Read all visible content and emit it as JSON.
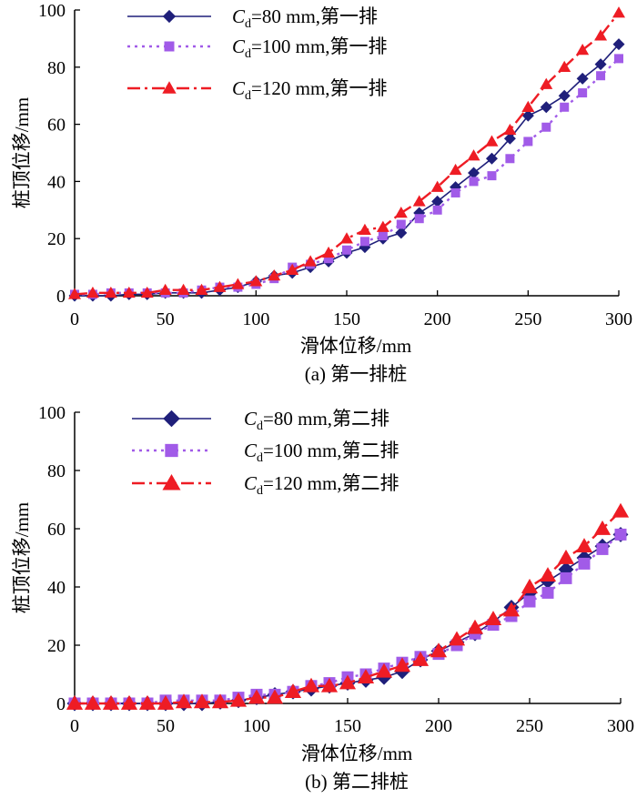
{
  "colors": {
    "c80": "#1f1f7a",
    "c100": "#a15be8",
    "c120": "#ee1c24",
    "axis": "#000000"
  },
  "chart_data": [
    {
      "type": "line",
      "caption": "(a) 第一排桩",
      "xlabel": "滑体位移/mm",
      "ylabel": "桩顶位移/mm",
      "xlim": [
        0,
        300
      ],
      "ylim": [
        0,
        100
      ],
      "xticks": [
        "0",
        "50",
        "100",
        "150",
        "200",
        "250",
        "300"
      ],
      "yticks": [
        "0",
        "20",
        "40",
        "60",
        "80",
        "100"
      ],
      "grid": false,
      "legend_position": "top-left",
      "x": [
        0,
        10,
        20,
        30,
        40,
        50,
        60,
        70,
        80,
        90,
        100,
        110,
        120,
        130,
        140,
        150,
        160,
        170,
        180,
        190,
        200,
        210,
        220,
        230,
        240,
        250,
        260,
        270,
        280,
        290,
        300
      ],
      "series": [
        {
          "legend_symbol": "C",
          "legend_subscript": "d",
          "legend_suffix": "=80 mm,第一排",
          "marker": "diamond",
          "line": "solid",
          "color": "#1f1f7a",
          "values": [
            0,
            0,
            0,
            0.5,
            0.5,
            1,
            1,
            1,
            2,
            3,
            5,
            7,
            8,
            10,
            12,
            15,
            17,
            20,
            22,
            29,
            33,
            38,
            43,
            48,
            55,
            63,
            66,
            70,
            76,
            81,
            88
          ]
        },
        {
          "legend_symbol": "C",
          "legend_subscript": "d",
          "legend_suffix": "=100 mm,第一排",
          "marker": "square",
          "line": "dotted",
          "color": "#a15be8",
          "values": [
            0.5,
            0.5,
            1,
            1,
            1,
            1,
            1,
            2,
            3,
            3,
            4,
            6,
            10,
            11,
            13,
            16,
            19,
            21,
            25,
            27,
            30,
            36,
            40,
            42,
            48,
            54,
            59,
            66,
            71,
            77,
            83
          ]
        },
        {
          "legend_symbol": "C",
          "legend_subscript": "d",
          "legend_suffix": "=120 mm,第一排",
          "marker": "triangle",
          "line": "dashdot",
          "color": "#ee1c24",
          "values": [
            0.5,
            1,
            1,
            1,
            1,
            2,
            2,
            2,
            3,
            4,
            5,
            7,
            9,
            12,
            15,
            20,
            23,
            24,
            29,
            33,
            38,
            44,
            49,
            54,
            58,
            66,
            74,
            80,
            86,
            91,
            99
          ]
        }
      ]
    },
    {
      "type": "line",
      "caption": "(b) 第二排桩",
      "xlabel": "滑体位移/mm",
      "ylabel": "桩顶位移/mm",
      "xlim": [
        0,
        300
      ],
      "ylim": [
        0,
        100
      ],
      "xticks": [
        "0",
        "50",
        "100",
        "150",
        "200",
        "250",
        "300"
      ],
      "yticks": [
        "0",
        "20",
        "40",
        "60",
        "80",
        "100"
      ],
      "grid": false,
      "legend_position": "top-left",
      "x": [
        0,
        10,
        20,
        30,
        40,
        50,
        60,
        70,
        80,
        90,
        100,
        110,
        120,
        130,
        140,
        150,
        160,
        170,
        180,
        190,
        200,
        210,
        220,
        230,
        240,
        250,
        260,
        270,
        280,
        290,
        300
      ],
      "series": [
        {
          "legend_symbol": "C",
          "legend_subscript": "d",
          "legend_suffix": "=80 mm,第二排",
          "marker": "diamond",
          "line": "solid",
          "color": "#1f1f7a",
          "values": [
            0,
            0,
            0,
            0,
            0,
            0,
            0,
            0,
            0.5,
            1,
            2,
            3,
            4,
            5,
            6,
            7,
            8,
            9,
            11,
            15,
            18,
            21,
            24,
            28,
            33,
            38,
            42,
            46,
            50,
            54,
            58
          ]
        },
        {
          "legend_symbol": "C",
          "legend_subscript": "d",
          "legend_suffix": "=100 mm,第二排",
          "marker": "square",
          "line": "dotted",
          "color": "#a15be8",
          "values": [
            0,
            0,
            0,
            0,
            0,
            1,
            1,
            1,
            1,
            2,
            3,
            3,
            4,
            6,
            7,
            9,
            10,
            12,
            14,
            16,
            17,
            20,
            24,
            27,
            30,
            35,
            38,
            43,
            48,
            53,
            58
          ]
        },
        {
          "legend_symbol": "C",
          "legend_subscript": "d",
          "legend_suffix": "=120 mm,第二排",
          "marker": "triangle",
          "line": "dashdot",
          "color": "#ee1c24",
          "values": [
            0,
            0,
            0,
            0,
            0,
            0,
            0.5,
            0.5,
            0.5,
            1,
            2,
            2,
            4,
            6,
            6,
            7,
            9,
            11,
            13,
            15,
            18,
            22,
            26,
            29,
            32,
            40,
            44,
            50,
            54,
            60,
            66
          ]
        }
      ]
    }
  ]
}
